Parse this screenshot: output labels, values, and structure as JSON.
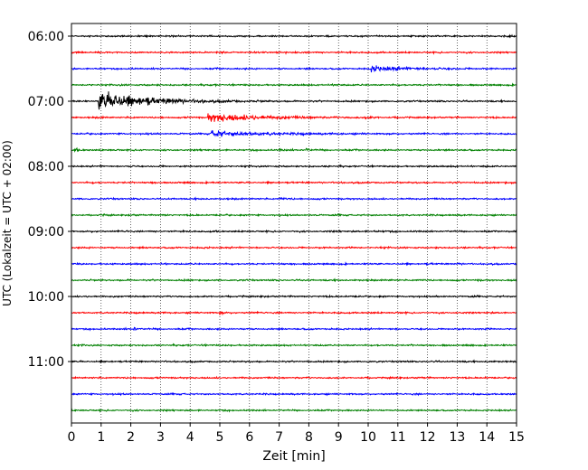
{
  "chart_data": {
    "type": "line",
    "title": "",
    "xlabel": "Zeit  [min]",
    "ylabel": "UTC (Lokalzeit = UTC + 02:00)",
    "xlim": [
      0,
      15
    ],
    "x_ticks": [
      0,
      1,
      2,
      3,
      4,
      5,
      6,
      7,
      8,
      9,
      10,
      11,
      12,
      13,
      14,
      15
    ],
    "x_tick_labels": [
      "0",
      "1",
      "2",
      "3",
      "4",
      "5",
      "6",
      "7",
      "8",
      "9",
      "10",
      "11",
      "12",
      "13",
      "14",
      "15"
    ],
    "y_tick_labels": [
      "06:00",
      "07:00",
      "08:00",
      "09:00",
      "10:00",
      "11:00"
    ],
    "y_tick_rows": [
      0,
      4,
      8,
      12,
      16,
      20
    ],
    "grid": {
      "vertical": true,
      "style": "dotted"
    },
    "trace_colors": [
      "#000000",
      "#ff0000",
      "#0000ff",
      "#008000"
    ],
    "trace_count": 24,
    "trace_minutes_per_line": 15,
    "events": [
      {
        "row": 2,
        "start_min": 10.1,
        "amplitude": 1.0,
        "duration_min": 3.5
      },
      {
        "row": 3,
        "start_min": 8.9,
        "amplitude": 0.4,
        "duration_min": 0.3
      },
      {
        "row": 4,
        "start_min": 0.9,
        "amplitude": 4.0,
        "duration_min": 4.0
      },
      {
        "row": 5,
        "start_min": 4.6,
        "amplitude": 1.6,
        "duration_min": 4.5
      },
      {
        "row": 5,
        "start_min": 9.9,
        "amplitude": 0.5,
        "duration_min": 0.4
      },
      {
        "row": 6,
        "start_min": 4.7,
        "amplitude": 1.1,
        "duration_min": 4.5
      },
      {
        "row": 7,
        "start_min": 0.1,
        "amplitude": 0.6,
        "duration_min": 0.3
      },
      {
        "row": 7,
        "start_min": 7.0,
        "amplitude": 0.3,
        "duration_min": 0.4
      },
      {
        "row": 7,
        "start_min": 7.9,
        "amplitude": 0.8,
        "duration_min": 0.3
      },
      {
        "row": 8,
        "start_min": 8.6,
        "amplitude": 0.8,
        "duration_min": 0.15
      },
      {
        "row": 10,
        "start_min": 7.0,
        "amplitude": 0.4,
        "duration_min": 0.5
      },
      {
        "row": 12,
        "start_min": 10.2,
        "amplitude": 0.35,
        "duration_min": 0.5
      },
      {
        "row": 17,
        "start_min": 5.0,
        "amplitude": 0.8,
        "duration_min": 0.2
      },
      {
        "row": 18,
        "start_min": 2.1,
        "amplitude": 0.7,
        "duration_min": 0.3
      }
    ]
  }
}
